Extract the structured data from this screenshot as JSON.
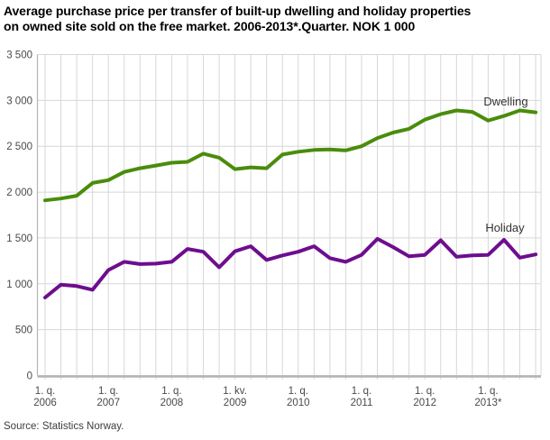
{
  "title": {
    "line1": "Average purchase price per transfer of built-up dwelling and holiday properties",
    "line2": "on owned site sold on the free market. 2006-2013*.Quarter. NOK 1 000"
  },
  "source": "Source: Statistics Norway.",
  "chart_data": {
    "type": "line",
    "unit": "NOK 1 000",
    "ylim": [
      0,
      3500
    ],
    "grid": true,
    "legend_position": "inline-right-of-lines",
    "quarters": [
      "2006-Q1",
      "2006-Q2",
      "2006-Q3",
      "2006-Q4",
      "2007-Q1",
      "2007-Q2",
      "2007-Q3",
      "2007-Q4",
      "2008-Q1",
      "2008-Q2",
      "2008-Q3",
      "2008-Q4",
      "2009-Q1",
      "2009-Q2",
      "2009-Q3",
      "2009-Q4",
      "2010-Q1",
      "2010-Q2",
      "2010-Q3",
      "2010-Q4",
      "2011-Q1",
      "2011-Q2",
      "2011-Q3",
      "2011-Q4",
      "2012-Q1",
      "2012-Q2",
      "2012-Q3",
      "2012-Q4",
      "2013-Q1",
      "2013-Q2",
      "2013-Q3",
      "2013-Q4"
    ],
    "x_tick_every": 4,
    "x_tick_labels": [
      {
        "line1": "1. q.",
        "line2": "2006"
      },
      {
        "line1": "1. q.",
        "line2": "2007"
      },
      {
        "line1": "1. q.",
        "line2": "2008"
      },
      {
        "line1": "1. kv.",
        "line2": "2009"
      },
      {
        "line1": "1. q.",
        "line2": "2010"
      },
      {
        "line1": "1. q.",
        "line2": "2011"
      },
      {
        "line1": "1. q.",
        "line2": "2012"
      },
      {
        "line1": "1. q.",
        "line2": "2013*"
      }
    ],
    "y_ticks": {
      "values": [
        0,
        500,
        1000,
        1500,
        2000,
        2500,
        3000,
        3500
      ],
      "labels": [
        "0",
        "500",
        "1 000",
        "1 500",
        "2 000",
        "2 500",
        "3 000",
        "3 500"
      ]
    },
    "series": [
      {
        "name": "Dwelling",
        "color": "#4a8c0c",
        "values": [
          1910,
          1930,
          1960,
          2100,
          2130,
          2220,
          2260,
          2290,
          2320,
          2330,
          2420,
          2375,
          2250,
          2270,
          2260,
          2410,
          2440,
          2460,
          2465,
          2455,
          2500,
          2590,
          2650,
          2690,
          2790,
          2850,
          2890,
          2875,
          2780,
          2830,
          2890,
          2870
        ]
      },
      {
        "name": "Holiday",
        "color": "#6e0d8e",
        "values": [
          850,
          990,
          975,
          935,
          1150,
          1240,
          1215,
          1220,
          1240,
          1380,
          1350,
          1180,
          1355,
          1410,
          1260,
          1310,
          1350,
          1410,
          1280,
          1240,
          1315,
          1490,
          1400,
          1300,
          1315,
          1475,
          1295,
          1310,
          1315,
          1480,
          1285,
          1320
        ]
      }
    ]
  }
}
